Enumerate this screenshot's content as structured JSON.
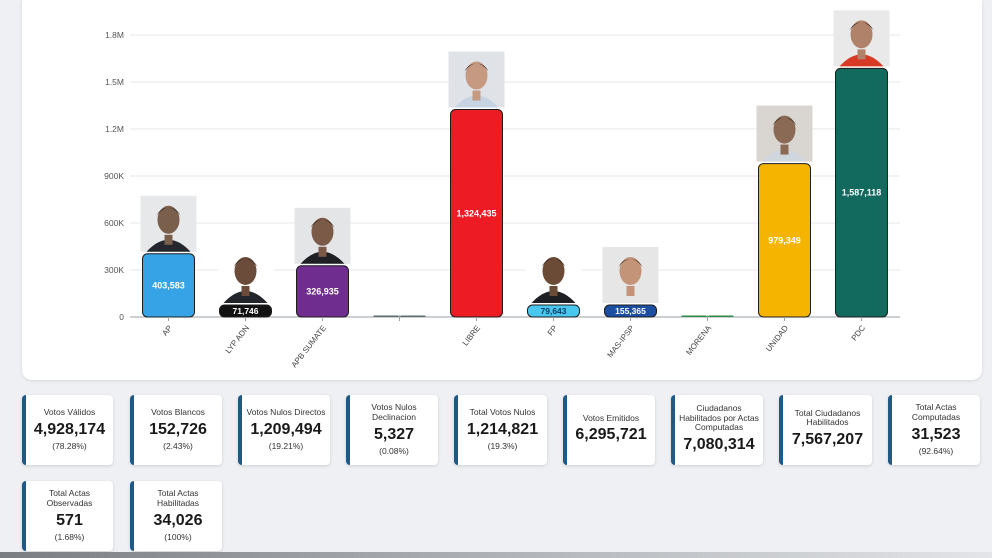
{
  "chart_data": {
    "type": "bar",
    "categories": [
      "AP",
      "LYP ADN",
      "APB SUMATE",
      "",
      "LIBRE",
      "FP",
      "MAS-IPSP",
      "MORENA",
      "UNIDAD",
      "PDC"
    ],
    "values": [
      403583,
      71746,
      326935,
      0,
      1324435,
      79643,
      155365,
      0,
      979349,
      1587118
    ],
    "value_labels": [
      "403,583",
      "71,746",
      "326,935",
      "0",
      "1,324,435",
      "79,643",
      "155,365",
      "0",
      "979,349",
      "1,587,118"
    ],
    "colors": [
      "#36a3e6",
      "#121212",
      "#6e2d8f",
      "#5d6b72",
      "#ec1b24",
      "#48c8ef",
      "#1c4ea1",
      "#2e8a4a",
      "#f5b400",
      "#12695e"
    ],
    "photo_tones": [
      "#7a5f4d",
      "#6b4c3a",
      "#7b5a47",
      "",
      "#c59a80",
      "#6b4a36",
      "#c49478",
      "",
      "#8a6a55",
      "#b0826a"
    ],
    "photo_backgrounds": [
      "#e7e8ea",
      "#ffffff",
      "#e4e5e7",
      "",
      "#dfe3e8",
      "#ffffff",
      "#e6e6e6",
      "",
      "#d9d6d2",
      "#e9e9e9"
    ],
    "photo_suits": [
      "#24282e",
      "#22252a",
      "#1f2024",
      "",
      "#c6d3e2",
      "#1d1f23",
      "#e6e6e6",
      "",
      "#cfd6de",
      "#d73a25"
    ],
    "y_ticks": [
      "0",
      "300K",
      "600K",
      "900K",
      "1.2M",
      "1.5M",
      "1.8M"
    ],
    "y_tick_values": [
      0,
      300000,
      600000,
      900000,
      1200000,
      1500000,
      1800000
    ],
    "ylim": [
      0,
      1800000
    ],
    "grid": true,
    "title": "",
    "xlabel": "",
    "ylabel": ""
  },
  "stats": [
    {
      "label": "Votos Válidos",
      "value": "4,928,174",
      "pct": "(78.28%)"
    },
    {
      "label": "Votos Blancos",
      "value": "152,726",
      "pct": "(2.43%)"
    },
    {
      "label": "Votos Nulos Directos",
      "value": "1,209,494",
      "pct": "(19.21%)"
    },
    {
      "label": "Votos Nulos Declinacion",
      "value": "5,327",
      "pct": "(0.08%)"
    },
    {
      "label": "Total Votos Nulos",
      "value": "1,214,821",
      "pct": "(19.3%)"
    },
    {
      "label": "Votos Emitidos",
      "value": "6,295,721",
      "pct": ""
    },
    {
      "label": "Ciudadanos Habilitados por Actas Computadas",
      "value": "7,080,314",
      "pct": ""
    },
    {
      "label": "Total Ciudadanos Habilitados",
      "value": "7,567,207",
      "pct": ""
    },
    {
      "label": "Total Actas Computadas",
      "value": "31,523",
      "pct": "(92.64%)"
    },
    {
      "label": "Total Actas Observadas",
      "value": "571",
      "pct": "(1.68%)"
    },
    {
      "label": "Total Actas Habilitadas",
      "value": "34,026",
      "pct": "(100%)"
    }
  ]
}
